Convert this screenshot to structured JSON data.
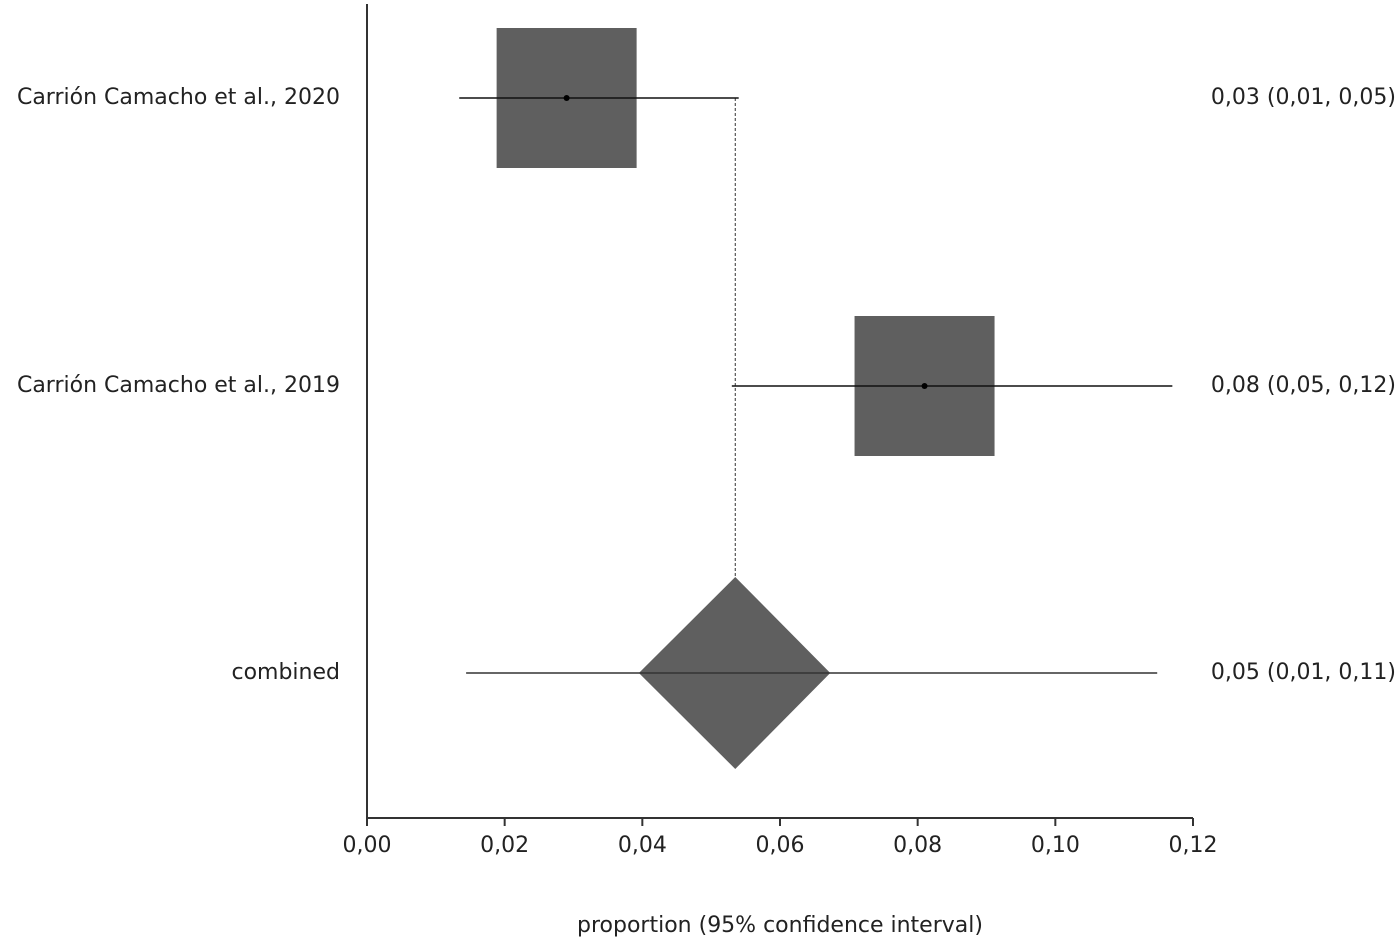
{
  "chart_data": {
    "type": "forest",
    "x_label": "proportion (95% confidence interval)",
    "xlim": [
      0,
      0.12
    ],
    "xticks": [
      {
        "value": 0,
        "label": "0,00"
      },
      {
        "value": 0.02,
        "label": "0,02"
      },
      {
        "value": 0.04,
        "label": "0,04"
      },
      {
        "value": 0.06,
        "label": "0,06"
      },
      {
        "value": 0.08,
        "label": "0,08"
      },
      {
        "value": 0.1,
        "label": "0,10"
      },
      {
        "value": 0.12,
        "label": "0,12"
      }
    ],
    "color": "#5f5f5f",
    "studies": [
      {
        "name": "Carrión Camacho et al., 2020",
        "estimate": 0.029,
        "lower": 0.0134,
        "upper": 0.054,
        "value_label": "0,03 (0,01, 0,05)"
      },
      {
        "name": "Carrión Camacho et al., 2019",
        "estimate": 0.081,
        "lower": 0.053,
        "upper": 0.117,
        "value_label": "0,08 (0,05, 0,12)"
      }
    ],
    "combined": {
      "name": "combined",
      "estimate": 0.0535,
      "lower": 0.0144,
      "upper": 0.1148,
      "diamond_lower": 0.0395,
      "diamond_upper": 0.0673,
      "value_label": "0,05 (0,01, 0,11)"
    }
  }
}
